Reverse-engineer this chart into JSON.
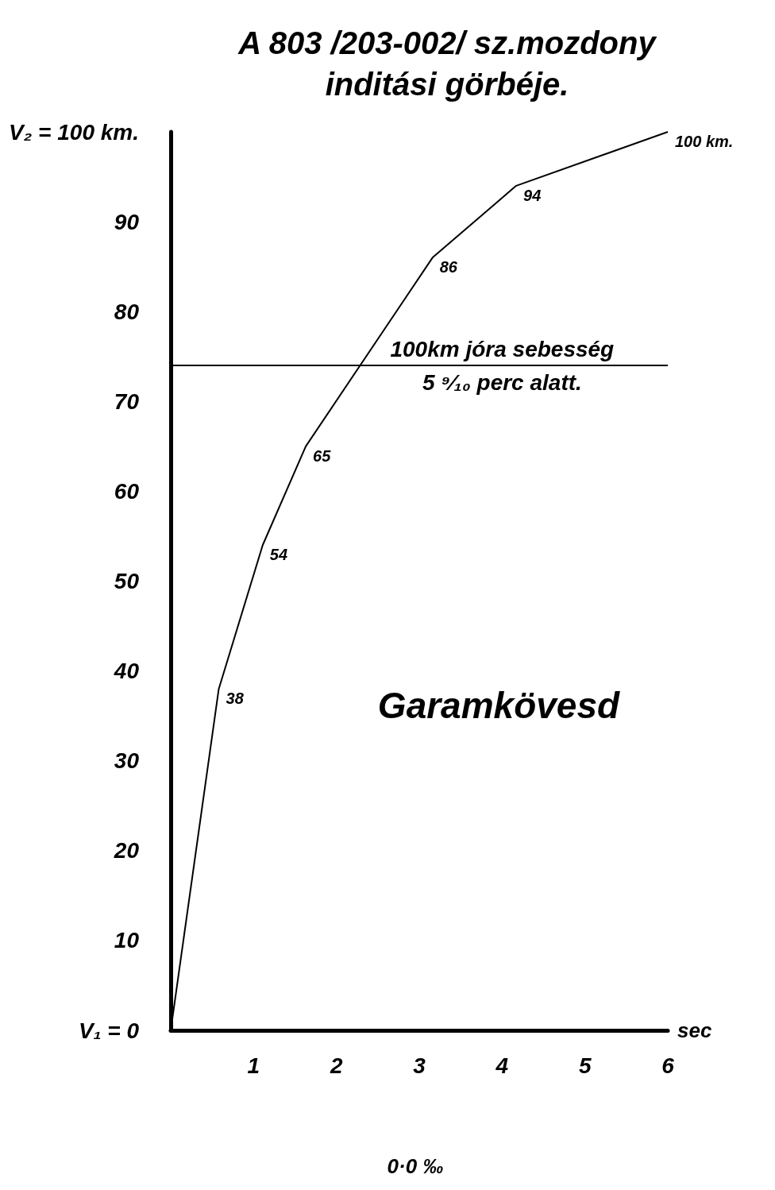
{
  "chart_data": {
    "type": "line",
    "title": "A 803 /203-002/ sz.mozdony\ninditási görbéje.",
    "xlabel": "sec",
    "x": [
      0,
      0.58,
      1.11,
      1.63,
      3.16,
      4.17,
      6
    ],
    "series": [
      {
        "color": "#000000",
        "values": [
          0,
          38,
          54,
          65,
          86,
          94,
          100
        ],
        "value_labels": [
          null,
          "38",
          "54",
          "65",
          "86",
          "94",
          "100 km."
        ]
      }
    ],
    "xlim": [
      0,
      6
    ],
    "xticks": [
      1,
      2,
      3,
      4,
      5,
      6
    ],
    "ylim": [
      0,
      100
    ],
    "yticks": [
      {
        "value": 0,
        "label": "V₁ = 0"
      },
      10,
      20,
      30,
      40,
      50,
      60,
      70,
      80,
      90,
      {
        "value": 100,
        "label": "V₂ = 100 km."
      }
    ],
    "ref_lines": [
      {
        "axis": "y",
        "value": 74,
        "color": "#000000"
      }
    ],
    "annotations": [
      {
        "text": "100km jóra sebesség\n5 ⁹⁄₁₀ perc alatt.",
        "x": 4,
        "y": 74
      },
      "Garamkövesd",
      "0·0 ‰"
    ],
    "grid": false,
    "line_style": "solid"
  }
}
